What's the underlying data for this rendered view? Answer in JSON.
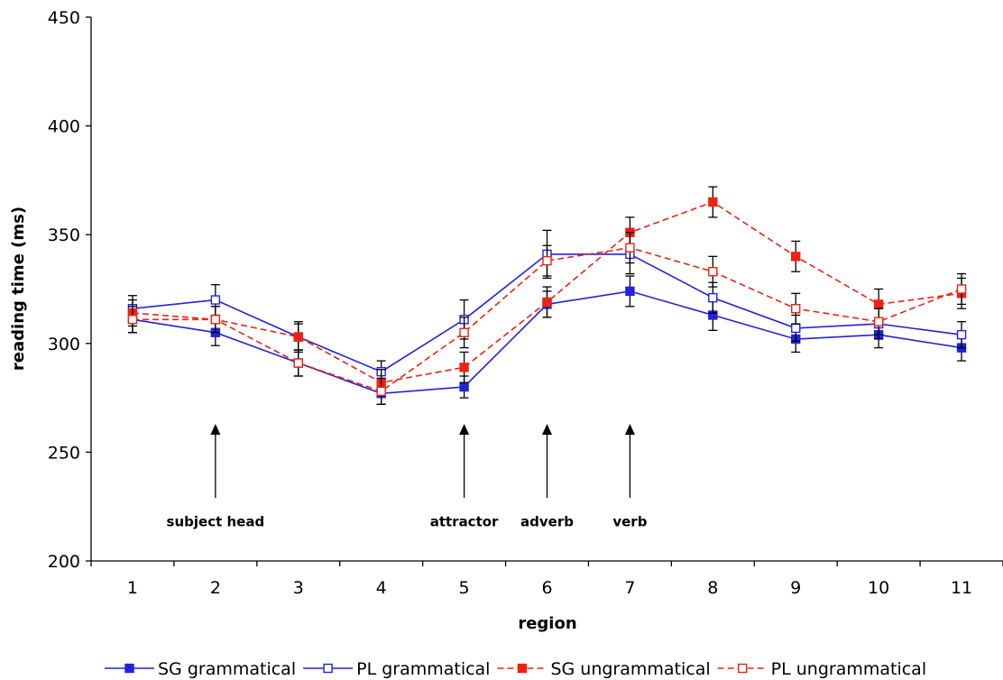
{
  "chart_data": {
    "type": "line",
    "title": "",
    "xlabel": "region",
    "ylabel": "reading time (ms)",
    "ylim": [
      200,
      450
    ],
    "yticks": [
      200,
      250,
      300,
      350,
      400,
      450
    ],
    "x": [
      1,
      2,
      3,
      4,
      5,
      6,
      7,
      8,
      9,
      10,
      11
    ],
    "x_tick_labels": [
      "1",
      "2",
      "3",
      "4",
      "5",
      "6",
      "7",
      "8",
      "9",
      "10",
      "11"
    ],
    "grid": false,
    "legend_position": "bottom",
    "series": [
      {
        "name": "SG grammatical",
        "color": "#2222dd",
        "line_style": "solid",
        "marker": "filled-square",
        "values": [
          311,
          305,
          291,
          277,
          280,
          318,
          324,
          313,
          302,
          304,
          298
        ],
        "errors": [
          6,
          6,
          6,
          5,
          5,
          6,
          7,
          7,
          6,
          6,
          6
        ]
      },
      {
        "name": "PL grammatical",
        "color": "#2222dd",
        "line_style": "solid",
        "marker": "open-square",
        "values": [
          316,
          320,
          303,
          287,
          311,
          341,
          341,
          321,
          307,
          309,
          304
        ],
        "errors": [
          6,
          7,
          6,
          5,
          9,
          11,
          9,
          7,
          6,
          7,
          6
        ]
      },
      {
        "name": "SG ungrammatical",
        "color": "#ee2211",
        "line_style": "dashed",
        "marker": "filled-square",
        "values": [
          314,
          311,
          303,
          282,
          289,
          319,
          351,
          365,
          340,
          318,
          323
        ],
        "errors": [
          6,
          6,
          7,
          6,
          7,
          7,
          7,
          7,
          7,
          7,
          7
        ]
      },
      {
        "name": "PL ungrammatical",
        "color": "#ee2211",
        "line_style": "dashed",
        "marker": "open-square",
        "values": [
          311,
          311,
          291,
          278,
          305,
          338,
          344,
          333,
          316,
          310,
          325
        ],
        "errors": [
          6,
          6,
          6,
          6,
          7,
          7,
          7,
          7,
          7,
          6,
          7
        ]
      }
    ],
    "annotations": [
      {
        "label": "subject head",
        "x": 2
      },
      {
        "label": "attractor",
        "x": 5
      },
      {
        "label": "adverb",
        "x": 6
      },
      {
        "label": "verb",
        "x": 7
      }
    ]
  }
}
